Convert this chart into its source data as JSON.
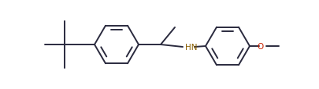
{
  "bg_color": "#ffffff",
  "bond_color": "#2a2a3e",
  "n_color": "#8B6000",
  "o_color": "#cc2200",
  "line_width": 1.4,
  "fig_width": 4.05,
  "fig_height": 1.15,
  "dpi": 100
}
